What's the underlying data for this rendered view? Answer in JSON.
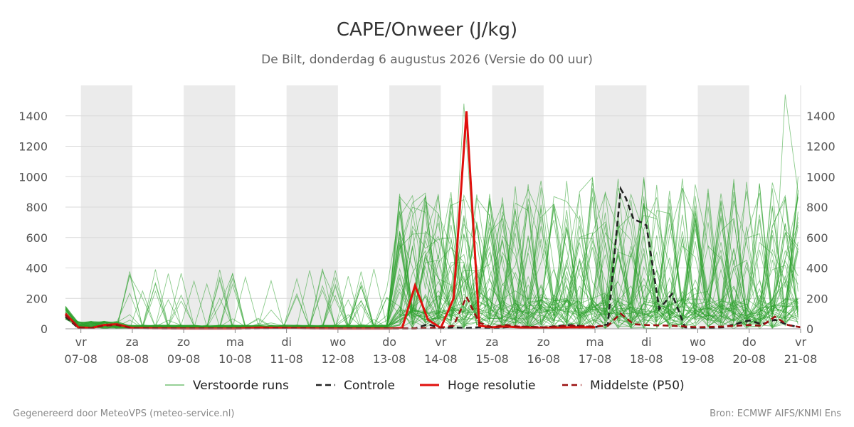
{
  "chart_data": {
    "type": "line",
    "title": "CAPE/Onweer (J/kg)",
    "subtitle": "De Bilt, donderdag  6 augustus 2026 (Versie do 00 uur)",
    "ylim": [
      0,
      1600
    ],
    "y_ticks": [
      0,
      200,
      400,
      600,
      800,
      1000,
      1200,
      1400
    ],
    "x_range_days": [
      6.7,
      21.0
    ],
    "x_ticks": [
      {
        "day": 7.0,
        "weekday": "vr",
        "date": "07-08"
      },
      {
        "day": 8.0,
        "weekday": "za",
        "date": "08-08"
      },
      {
        "day": 9.0,
        "weekday": "zo",
        "date": "09-08"
      },
      {
        "day": 10.0,
        "weekday": "ma",
        "date": "10-08"
      },
      {
        "day": 11.0,
        "weekday": "di",
        "date": "11-08"
      },
      {
        "day": 12.0,
        "weekday": "wo",
        "date": "12-08"
      },
      {
        "day": 13.0,
        "weekday": "do",
        "date": "13-08"
      },
      {
        "day": 14.0,
        "weekday": "vr",
        "date": "14-08"
      },
      {
        "day": 15.0,
        "weekday": "za",
        "date": "15-08"
      },
      {
        "day": 16.0,
        "weekday": "zo",
        "date": "16-08"
      },
      {
        "day": 17.0,
        "weekday": "ma",
        "date": "17-08"
      },
      {
        "day": 18.0,
        "weekday": "di",
        "date": "18-08"
      },
      {
        "day": 19.0,
        "weekday": "wo",
        "date": "19-08"
      },
      {
        "day": 20.0,
        "weekday": "do",
        "date": "20-08"
      },
      {
        "day": 21.0,
        "weekday": "vr",
        "date": "21-08"
      }
    ],
    "shaded_night_bands": [
      [
        7.0,
        8.0
      ],
      [
        9.0,
        10.0
      ],
      [
        11.0,
        12.0
      ],
      [
        13.0,
        14.0
      ],
      [
        15.0,
        16.0
      ],
      [
        17.0,
        18.0
      ],
      [
        19.0,
        20.0
      ]
    ],
    "grid": true,
    "legend_position": "bottom",
    "series": [
      {
        "name": "Controle",
        "color": "#222222",
        "style": "dashed",
        "x": [
          6.7,
          6.95,
          7.2,
          7.45,
          7.7,
          8.0,
          9.0,
          10.0,
          10.5,
          11.0,
          12.0,
          13.0,
          13.5,
          13.75,
          14.0,
          14.25,
          14.5,
          14.75,
          15.0,
          15.25,
          15.5,
          16.0,
          16.5,
          17.0,
          17.25,
          17.5,
          17.6,
          17.75,
          17.9,
          18.0,
          18.25,
          18.5,
          18.75,
          19.0,
          19.5,
          20.0,
          20.25,
          20.5,
          20.75,
          21.0
        ],
        "y": [
          80,
          5,
          5,
          25,
          30,
          5,
          2,
          2,
          5,
          5,
          2,
          2,
          2,
          30,
          5,
          10,
          5,
          10,
          5,
          10,
          15,
          10,
          25,
          10,
          30,
          920,
          860,
          720,
          700,
          680,
          130,
          230,
          10,
          5,
          10,
          55,
          30,
          60,
          25,
          10
        ]
      },
      {
        "name": "Hoge resolutie",
        "color": "#e0100c",
        "style": "solid",
        "x": [
          6.7,
          6.95,
          7.2,
          7.45,
          7.7,
          8.0,
          9.0,
          10.0,
          10.5,
          11.0,
          12.0,
          13.0,
          13.25,
          13.5,
          13.75,
          14.0,
          14.25,
          14.5,
          14.75,
          15.0,
          15.25,
          15.5,
          16.0,
          16.5,
          17.0
        ],
        "y": [
          100,
          10,
          5,
          25,
          30,
          5,
          2,
          2,
          8,
          5,
          2,
          2,
          5,
          285,
          60,
          5,
          200,
          1430,
          20,
          10,
          15,
          10,
          5,
          10,
          10
        ]
      },
      {
        "name": "Middelste (P50)",
        "color": "#9b1010",
        "style": "dashed",
        "x": [
          6.7,
          6.95,
          7.2,
          7.45,
          7.7,
          8.0,
          9.0,
          10.0,
          11.0,
          12.0,
          13.0,
          13.5,
          14.0,
          14.25,
          14.5,
          14.75,
          15.0,
          15.25,
          15.5,
          16.0,
          16.5,
          17.0,
          17.25,
          17.5,
          17.75,
          18.0,
          18.5,
          19.0,
          19.5,
          20.0,
          20.25,
          20.5,
          20.75,
          21.0
        ],
        "y": [
          90,
          8,
          5,
          20,
          25,
          4,
          2,
          2,
          4,
          2,
          2,
          2,
          8,
          20,
          210,
          40,
          10,
          25,
          15,
          10,
          20,
          15,
          20,
          100,
          30,
          25,
          20,
          10,
          15,
          25,
          20,
          80,
          25,
          10
        ]
      }
    ],
    "legend": [
      "Verstoorde runs",
      "Controle",
      "Hoge resolutie",
      "Middelste (P50)"
    ],
    "ensemble": {
      "name": "Verstoorde runs",
      "color": "#2ca02c",
      "members": 50,
      "peak_value": 1480
    }
  },
  "footer": {
    "left": "Gegenereerd door MeteoVPS (meteo-service.nl)",
    "right": "Bron: ECMWF AIFS/KNMI Ens"
  }
}
